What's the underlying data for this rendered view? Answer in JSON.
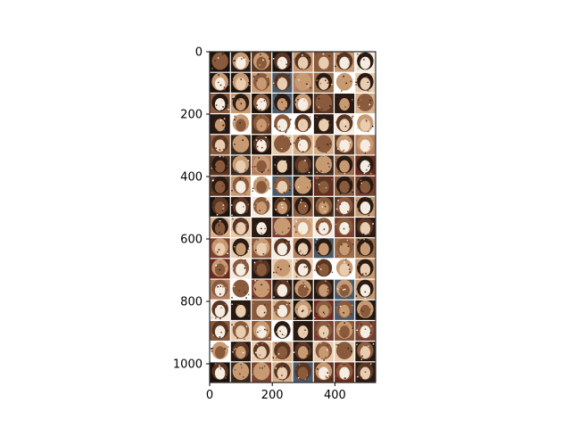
{
  "figure": {
    "background": "#ffffff",
    "axes_color": "#000000"
  },
  "image_grid": {
    "description_kind": "grid of generated face thumbnails",
    "rows": 16,
    "cols": 8,
    "data_width": 530,
    "data_height": 1060,
    "separator_color": "#ffffff",
    "palette": [
      "#2a1a12",
      "#5a3522",
      "#8a5a3c",
      "#c89a72",
      "#e8cdb0",
      "#f5ece2",
      "#3a2818",
      "#1b120c",
      "#6b2a1e",
      "#9c6e4a",
      "#d7b08a",
      "#4a5a6a",
      "#ffffff",
      "#7a4030",
      "#b48060",
      "#241812"
    ]
  },
  "x_axis": {
    "ticks": [
      {
        "value": 0,
        "label": "0"
      },
      {
        "value": 200,
        "label": "200"
      },
      {
        "value": 400,
        "label": "400"
      }
    ],
    "range": [
      0,
      530
    ]
  },
  "y_axis": {
    "ticks": [
      {
        "value": 0,
        "label": "0"
      },
      {
        "value": 200,
        "label": "200"
      },
      {
        "value": 400,
        "label": "400"
      },
      {
        "value": 600,
        "label": "600"
      },
      {
        "value": 800,
        "label": "800"
      },
      {
        "value": 1000,
        "label": "1000"
      }
    ],
    "range": [
      0,
      1060
    ],
    "inverted": true
  }
}
